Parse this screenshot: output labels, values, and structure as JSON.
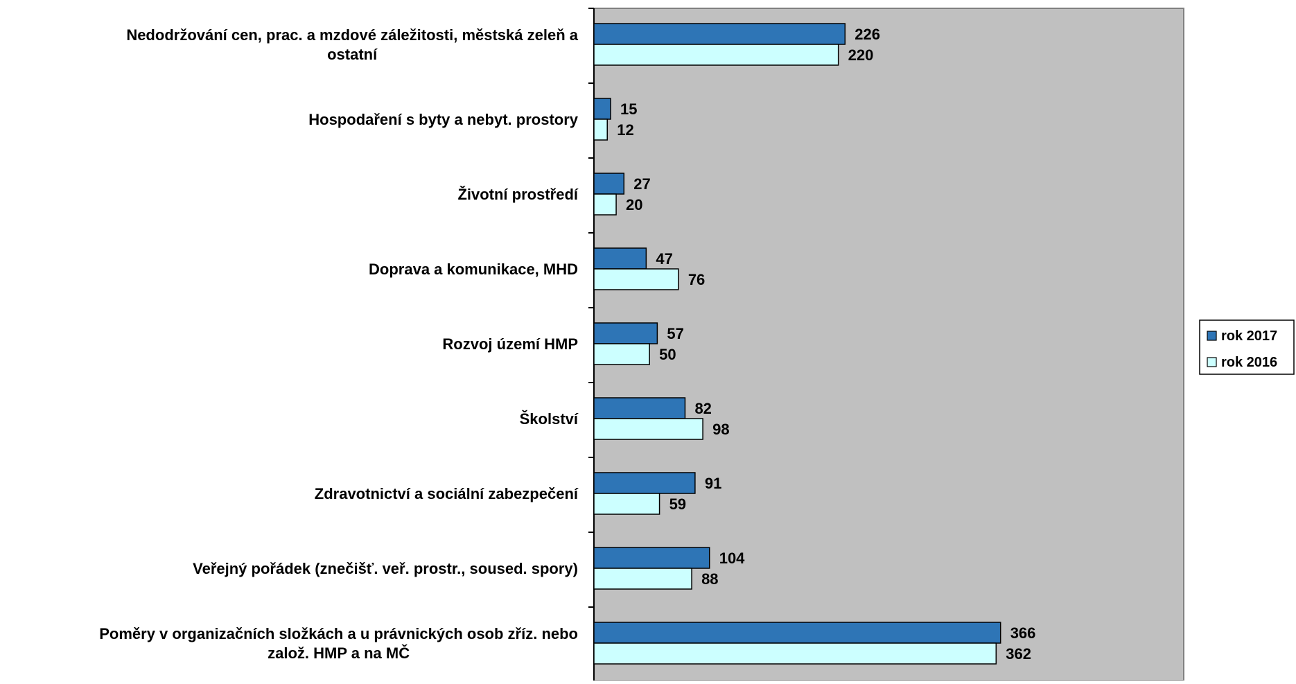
{
  "chart_data": {
    "type": "bar",
    "orientation": "horizontal",
    "categories": [
      [
        "Nedodržování cen, prac. a mzdové záležitosti, městská zeleň a",
        "ostatní"
      ],
      [
        "Hospodaření s byty a nebyt. prostory"
      ],
      [
        "Životní prostředí"
      ],
      [
        "Doprava a komunikace, MHD"
      ],
      [
        "Rozvoj území HMP"
      ],
      [
        "Školství"
      ],
      [
        "Zdravotnictví a sociální zabezpečení"
      ],
      [
        "Veřejný pořádek (znečišť. veř. prostr., soused. spory)"
      ],
      [
        "Poměry v organizačních složkách a u právnických osob zříz. nebo",
        "založ. HMP a na MČ"
      ]
    ],
    "series": [
      {
        "name": "rok 2017",
        "color": "#2E75B6",
        "values": [
          226,
          15,
          27,
          47,
          57,
          82,
          91,
          104,
          366
        ]
      },
      {
        "name": "rok 2016",
        "color": "#CCFFFF",
        "values": [
          220,
          12,
          20,
          76,
          50,
          98,
          59,
          88,
          362
        ]
      }
    ],
    "xlim": [
      0,
      400
    ],
    "grid": false,
    "legend": "right",
    "plot_background": "#C0C0C0"
  }
}
